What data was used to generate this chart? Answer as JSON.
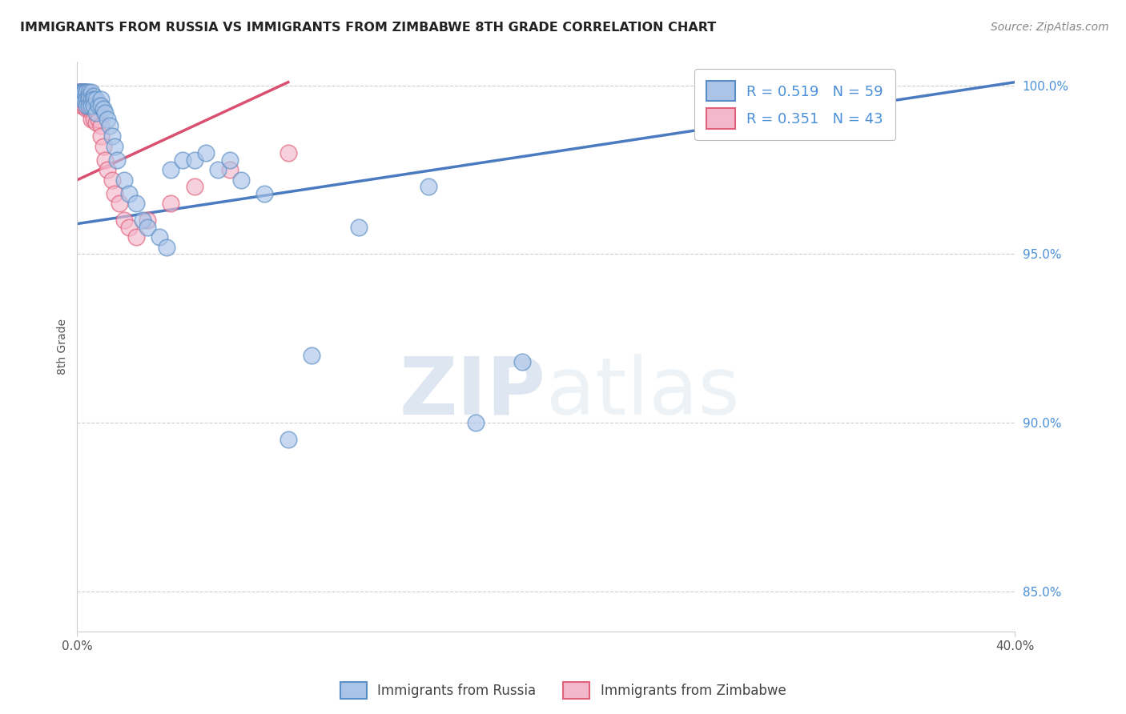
{
  "title": "IMMIGRANTS FROM RUSSIA VS IMMIGRANTS FROM ZIMBABWE 8TH GRADE CORRELATION CHART",
  "source": "Source: ZipAtlas.com",
  "ylabel": "8th Grade",
  "xlim": [
    0.0,
    0.4
  ],
  "ylim": [
    0.838,
    1.007
  ],
  "yticks": [
    0.85,
    0.9,
    0.95,
    1.0
  ],
  "ytick_labels": [
    "85.0%",
    "90.0%",
    "95.0%",
    "100.0%"
  ],
  "russia_color": "#aac4e8",
  "zimbabwe_color": "#f4b8cc",
  "russia_edge_color": "#5b8ec4",
  "zimbabwe_edge_color": "#e0607a",
  "russia_line_color": "#4a7abf",
  "zimbabwe_line_color": "#d95070",
  "R_russia": 0.519,
  "N_russia": 59,
  "R_zimbabwe": 0.351,
  "N_zimbabwe": 43,
  "watermark": "ZIPatlas",
  "russia_x": [
    0.001,
    0.001,
    0.002,
    0.002,
    0.002,
    0.003,
    0.003,
    0.003,
    0.003,
    0.003,
    0.004,
    0.004,
    0.004,
    0.004,
    0.005,
    0.005,
    0.005,
    0.005,
    0.006,
    0.006,
    0.006,
    0.007,
    0.007,
    0.007,
    0.008,
    0.008,
    0.009,
    0.01,
    0.01,
    0.011,
    0.012,
    0.013,
    0.014,
    0.015,
    0.016,
    0.017,
    0.02,
    0.022,
    0.025,
    0.028,
    0.03,
    0.035,
    0.038,
    0.04,
    0.045,
    0.05,
    0.055,
    0.06,
    0.065,
    0.07,
    0.08,
    0.09,
    0.1,
    0.12,
    0.15,
    0.17,
    0.19,
    0.33,
    0.34
  ],
  "russia_y": [
    0.998,
    0.998,
    0.998,
    0.998,
    0.996,
    0.998,
    0.998,
    0.998,
    0.996,
    0.998,
    0.998,
    0.998,
    0.996,
    0.994,
    0.998,
    0.997,
    0.996,
    0.994,
    0.998,
    0.996,
    0.994,
    0.997,
    0.996,
    0.994,
    0.996,
    0.992,
    0.994,
    0.996,
    0.994,
    0.993,
    0.992,
    0.99,
    0.988,
    0.985,
    0.982,
    0.978,
    0.972,
    0.968,
    0.965,
    0.96,
    0.958,
    0.955,
    0.952,
    0.975,
    0.978,
    0.978,
    0.98,
    0.975,
    0.978,
    0.972,
    0.968,
    0.895,
    0.92,
    0.958,
    0.97,
    0.9,
    0.918,
    0.998,
    0.998
  ],
  "zimbabwe_x": [
    0.001,
    0.001,
    0.001,
    0.002,
    0.002,
    0.002,
    0.002,
    0.003,
    0.003,
    0.003,
    0.003,
    0.004,
    0.004,
    0.004,
    0.004,
    0.005,
    0.005,
    0.005,
    0.006,
    0.006,
    0.006,
    0.007,
    0.007,
    0.007,
    0.008,
    0.008,
    0.009,
    0.01,
    0.01,
    0.011,
    0.012,
    0.013,
    0.015,
    0.016,
    0.018,
    0.02,
    0.022,
    0.025,
    0.03,
    0.04,
    0.05,
    0.065,
    0.09
  ],
  "zimbabwe_y": [
    0.998,
    0.998,
    0.996,
    0.998,
    0.998,
    0.996,
    0.994,
    0.998,
    0.998,
    0.996,
    0.994,
    0.998,
    0.997,
    0.996,
    0.993,
    0.997,
    0.996,
    0.993,
    0.996,
    0.993,
    0.99,
    0.996,
    0.993,
    0.99,
    0.993,
    0.989,
    0.99,
    0.988,
    0.985,
    0.982,
    0.978,
    0.975,
    0.972,
    0.968,
    0.965,
    0.96,
    0.958,
    0.955,
    0.96,
    0.965,
    0.97,
    0.975,
    0.98
  ],
  "russia_line_x": [
    0.0,
    0.4
  ],
  "russia_line_y": [
    0.959,
    1.001
  ],
  "zimbabwe_line_x": [
    0.0,
    0.09
  ],
  "zimbabwe_line_y": [
    0.972,
    1.001
  ]
}
